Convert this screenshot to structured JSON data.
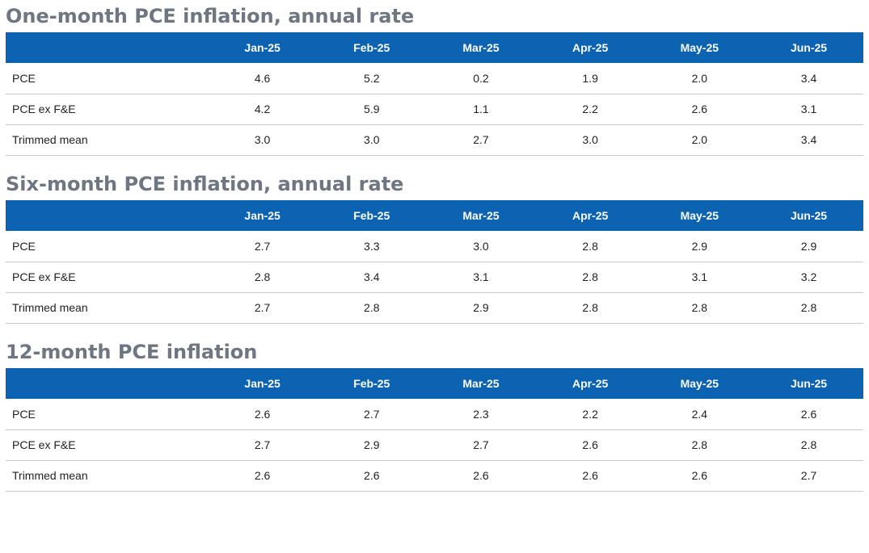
{
  "chart_data": [
    {
      "type": "table",
      "title": "One-month PCE inflation, annual rate",
      "columns": [
        "Jan-25",
        "Feb-25",
        "Mar-25",
        "Apr-25",
        "May-25",
        "Jun-25"
      ],
      "rows": [
        {
          "label": "PCE",
          "values": [
            "4.6",
            "5.2",
            "0.2",
            "1.9",
            "2.0",
            "3.4"
          ]
        },
        {
          "label": "PCE ex F&E",
          "values": [
            "4.2",
            "5.9",
            "1.1",
            "2.2",
            "2.6",
            "3.1"
          ]
        },
        {
          "label": "Trimmed mean",
          "values": [
            "3.0",
            "3.0",
            "2.7",
            "3.0",
            "2.0",
            "3.4"
          ]
        }
      ]
    },
    {
      "type": "table",
      "title": "Six-month PCE inflation, annual rate",
      "columns": [
        "Jan-25",
        "Feb-25",
        "Mar-25",
        "Apr-25",
        "May-25",
        "Jun-25"
      ],
      "rows": [
        {
          "label": "PCE",
          "values": [
            "2.7",
            "3.3",
            "3.0",
            "2.8",
            "2.9",
            "2.9"
          ]
        },
        {
          "label": "PCE ex F&E",
          "values": [
            "2.8",
            "3.4",
            "3.1",
            "2.8",
            "3.1",
            "3.2"
          ]
        },
        {
          "label": "Trimmed mean",
          "values": [
            "2.7",
            "2.8",
            "2.9",
            "2.8",
            "2.8",
            "2.8"
          ]
        }
      ]
    },
    {
      "type": "table",
      "title": "12-month PCE inflation",
      "columns": [
        "Jan-25",
        "Feb-25",
        "Mar-25",
        "Apr-25",
        "May-25",
        "Jun-25"
      ],
      "rows": [
        {
          "label": "PCE",
          "values": [
            "2.6",
            "2.7",
            "2.3",
            "2.2",
            "2.4",
            "2.6"
          ]
        },
        {
          "label": "PCE ex F&E",
          "values": [
            "2.7",
            "2.9",
            "2.7",
            "2.6",
            "2.8",
            "2.8"
          ]
        },
        {
          "label": "Trimmed mean",
          "values": [
            "2.6",
            "2.6",
            "2.6",
            "2.6",
            "2.6",
            "2.7"
          ]
        }
      ]
    }
  ],
  "colors": {
    "header_bg": "#0b63b1",
    "header_text": "#ffffff",
    "title_text": "#6e7681",
    "body_text": "#222222",
    "row_divider": "#c8c8c8"
  }
}
